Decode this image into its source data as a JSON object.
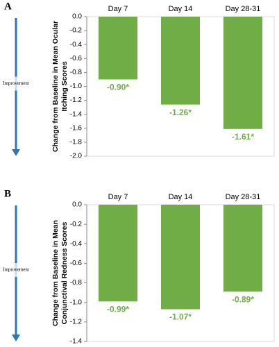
{
  "chart_data": [
    {
      "type": "bar",
      "panel": "A",
      "annotation": "Improvement",
      "ylabel": [
        "Change from Baseline in Mean Ocular",
        "Itching Scores"
      ],
      "categories": [
        "Day 7",
        "Day 14",
        "Day 28-31"
      ],
      "values": [
        -0.9,
        -1.26,
        -1.61
      ],
      "value_labels": [
        "-0.90*",
        "-1.26*",
        "-1.61*"
      ],
      "color": "#70ad47",
      "ylim": [
        -2.0,
        0
      ],
      "yticks": [
        {
          "value": 0,
          "label": "0.0"
        },
        -0.2,
        -0.4,
        -0.6,
        -0.8,
        {
          "value": -1.0,
          "label": "-1.0"
        },
        -1.2,
        -1.4,
        -1.6,
        -1.8,
        {
          "value": -2.0,
          "label": "-2.0"
        }
      ]
    },
    {
      "type": "bar",
      "panel": "B",
      "annotation": "Improvement",
      "ylabel": [
        "Change from Baseline in Mean",
        "Conjunctival Redness Scores"
      ],
      "categories": [
        "Day 7",
        "Day 14",
        "Day 28-31"
      ],
      "values": [
        -0.99,
        -1.07,
        -0.89
      ],
      "value_labels": [
        "-0.99*",
        "-1.07*",
        "-0.89*"
      ],
      "color": "#70ad47",
      "ylim": [
        -1.4,
        0
      ],
      "yticks": [
        {
          "value": 0,
          "label": "0.0"
        },
        -0.2,
        -0.4,
        -0.6,
        -0.8,
        {
          "value": -1.0,
          "label": "-1.0"
        },
        -1.2,
        -1.4
      ]
    }
  ]
}
